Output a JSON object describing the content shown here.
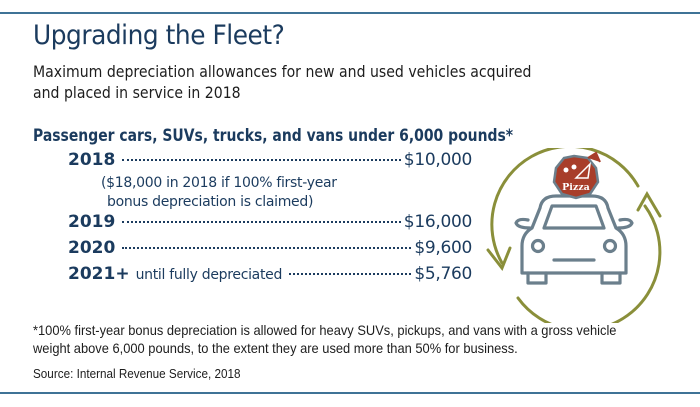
{
  "title": "Upgrading the Fleet?",
  "subtitle": {
    "line1": "Maximum depreciation allowances for new and used vehicles acquired",
    "line2": "and placed in service in 2018"
  },
  "section_heading": "Passenger cars, SUVs, trucks, and vans under 6,000 pounds*",
  "rows": [
    {
      "year": "2018",
      "note": "",
      "amount": "$10,000"
    },
    {
      "year": "2019",
      "note": "",
      "amount": "$16,000"
    },
    {
      "year": "2020",
      "note": "",
      "amount": "$9,600"
    },
    {
      "year": "2021+",
      "note": "until fully depreciated",
      "amount": "$5,760"
    }
  ],
  "bonus_note": {
    "line1": "($18,000 in 2018 if 100% first-year",
    "line2": "bonus depreciation is claimed)"
  },
  "illustration": {
    "badge_text": "Pizza",
    "colors": {
      "cycle_arrows": "#8a8f3a",
      "car": "#6b7f8c",
      "badge": "#a83e2a"
    }
  },
  "footnote": {
    "line1": "*100% first-year bonus depreciation is allowed for heavy SUVs, pickups, and vans with a gross vehicle",
    "line2": "weight above 6,000 pounds, to the extent they are used more than 50% for business."
  },
  "source": "Source: Internal Revenue Service, 2018",
  "colors": {
    "heading": "#1b3b5e",
    "rule": "#3f7396",
    "body_text": "#1d1d1d"
  }
}
